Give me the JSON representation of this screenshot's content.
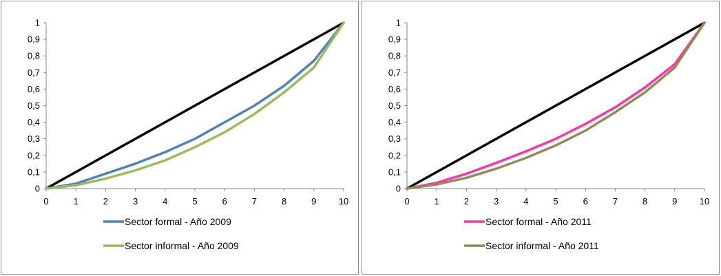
{
  "chart_data": [
    {
      "type": "line",
      "title": "",
      "xlabel": "",
      "ylabel": "",
      "xlim": [
        0,
        10
      ],
      "ylim": [
        0,
        1
      ],
      "x_ticks": [
        "0",
        "1",
        "2",
        "3",
        "4",
        "5",
        "6",
        "7",
        "8",
        "9",
        "10"
      ],
      "y_ticks": [
        "0",
        "0,1",
        "0,2",
        "0,3",
        "0,4",
        "0,5",
        "0,6",
        "0,7",
        "0,8",
        "0,9",
        "1"
      ],
      "grid": false,
      "legend_position": "bottom",
      "series": [
        {
          "name": "",
          "color": "#000000",
          "x": [
            0,
            10
          ],
          "y": [
            0,
            1
          ]
        },
        {
          "name": "Sector formal - Año 2009",
          "color": "#4f81bd",
          "x": [
            0,
            1,
            2,
            3,
            4,
            5,
            6,
            7,
            8,
            9,
            10
          ],
          "y": [
            0,
            0.03,
            0.09,
            0.15,
            0.22,
            0.3,
            0.4,
            0.5,
            0.62,
            0.77,
            1
          ]
        },
        {
          "name": "Sector informal - Año 2009",
          "color": "#9bbb59",
          "x": [
            0,
            1,
            2,
            3,
            4,
            5,
            6,
            7,
            8,
            9,
            10
          ],
          "y": [
            0,
            0.02,
            0.06,
            0.11,
            0.17,
            0.25,
            0.34,
            0.45,
            0.58,
            0.73,
            1
          ]
        }
      ]
    },
    {
      "type": "line",
      "title": "",
      "xlabel": "",
      "ylabel": "",
      "xlim": [
        0,
        10
      ],
      "ylim": [
        0,
        1
      ],
      "x_ticks": [
        "0",
        "1",
        "2",
        "3",
        "4",
        "5",
        "6",
        "7",
        "8",
        "9",
        "10"
      ],
      "y_ticks": [
        "0",
        "0,1",
        "0,2",
        "0,3",
        "0,4",
        "0,5",
        "0,6",
        "0,7",
        "0,8",
        "0,9",
        "1"
      ],
      "grid": false,
      "legend_position": "bottom",
      "series": [
        {
          "name": "",
          "color": "#000000",
          "x": [
            0,
            10
          ],
          "y": [
            0,
            1
          ]
        },
        {
          "name": "Sector formal - Año 2011",
          "color": "#ff33aa",
          "x": [
            0,
            1,
            2,
            3,
            4,
            5,
            6,
            7,
            8,
            9,
            10
          ],
          "y": [
            0,
            0.035,
            0.09,
            0.155,
            0.225,
            0.3,
            0.39,
            0.49,
            0.61,
            0.75,
            1
          ]
        },
        {
          "name": "Sector informal - Año 2011",
          "color": "#948a54",
          "x": [
            0,
            1,
            2,
            3,
            4,
            5,
            6,
            7,
            8,
            9,
            10
          ],
          "y": [
            0,
            0.025,
            0.065,
            0.12,
            0.185,
            0.26,
            0.35,
            0.46,
            0.58,
            0.73,
            1
          ]
        }
      ]
    }
  ]
}
